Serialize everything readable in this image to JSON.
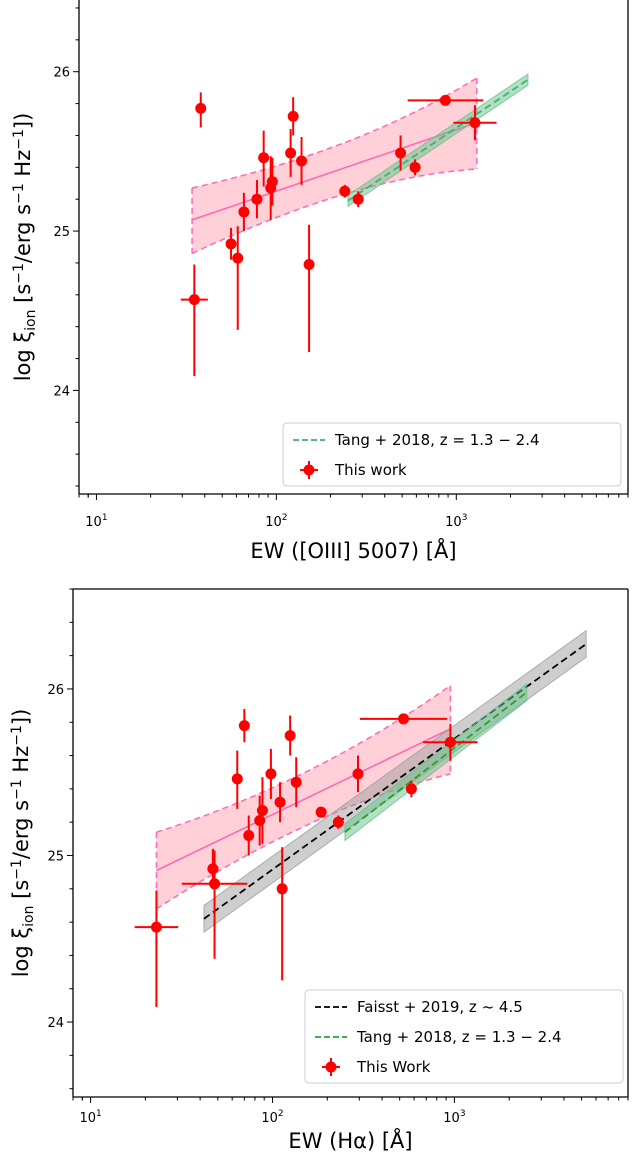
{
  "chart_data": [
    {
      "type": "scatter",
      "xlabel": "EW ([OIII] 5007) [Å]",
      "ylabel": "log ξ_ion [s^-1/erg s^-1 Hz^-1])",
      "xscale": "log",
      "xlim": [
        8,
        9000
      ],
      "ylim": [
        23.35,
        26.45
      ],
      "xticks": [
        10,
        100,
        1000
      ],
      "xtick_labels": [
        {
          "base": "10",
          "exp": "1"
        },
        {
          "base": "10",
          "exp": "2"
        },
        {
          "base": "10",
          "exp": "3"
        }
      ],
      "yticks": [
        24,
        25,
        26
      ],
      "ytick_labels": [
        "24",
        "25",
        "26"
      ],
      "grid": false,
      "legend_position": "lower-right",
      "colors": {
        "data": "#ff0000",
        "fit": "#ff69b4",
        "band": "#ffc0cb",
        "tang": "#3cb371",
        "tang_band": "#8fd19e"
      },
      "fit_band": {
        "x": [
          34,
          1300
        ],
        "center": [
          25.07,
          25.68
        ],
        "upper": [
          25.27,
          25.96
        ],
        "lower": [
          24.86,
          25.39
        ]
      },
      "reference_lines": [
        {
          "name": "Tang + 2018,  z = 1.3 − 2.4",
          "color": "#3cb371",
          "x": [
            250,
            2500
          ],
          "y": [
            25.19,
            25.95
          ],
          "band": 0.035
        }
      ],
      "series": [
        {
          "name": "This work",
          "color": "#ff0000",
          "points": [
            {
              "x": 35,
              "y": 24.57,
              "ylo": 0.48,
              "yhi": 0.22,
              "xerr": 0.025
            },
            {
              "x": 38,
              "y": 25.77,
              "ylo": 0.12,
              "yhi": 0.1
            },
            {
              "x": 56,
              "y": 24.92,
              "ylo": 0.1,
              "yhi": 0.1
            },
            {
              "x": 61,
              "y": 24.83,
              "ylo": 0.45,
              "yhi": 0.2
            },
            {
              "x": 66,
              "y": 25.12,
              "ylo": 0.12,
              "yhi": 0.12
            },
            {
              "x": 78,
              "y": 25.2,
              "ylo": 0.12,
              "yhi": 0.12
            },
            {
              "x": 85,
              "y": 25.46,
              "ylo": 0.18,
              "yhi": 0.17
            },
            {
              "x": 93,
              "y": 25.27,
              "ylo": 0.2,
              "yhi": 0.2
            },
            {
              "x": 95,
              "y": 25.31,
              "ylo": 0.15,
              "yhi": 0.15
            },
            {
              "x": 120,
              "y": 25.49,
              "ylo": 0.15,
              "yhi": 0.15
            },
            {
              "x": 124,
              "y": 25.72,
              "ylo": 0.12,
              "yhi": 0.12
            },
            {
              "x": 138,
              "y": 25.44,
              "ylo": 0.15,
              "yhi": 0.15
            },
            {
              "x": 152,
              "y": 24.79,
              "ylo": 0.55,
              "yhi": 0.25
            },
            {
              "x": 240,
              "y": 25.25,
              "ylo": 0.04,
              "yhi": 0.04
            },
            {
              "x": 285,
              "y": 25.2,
              "ylo": 0.05,
              "yhi": 0.05
            },
            {
              "x": 490,
              "y": 25.49,
              "ylo": 0.11,
              "yhi": 0.11
            },
            {
              "x": 590,
              "y": 25.4,
              "ylo": 0.05,
              "yhi": 0.05
            },
            {
              "x": 870,
              "y": 25.82,
              "ylo": 0.03,
              "yhi": 0.03,
              "xerr": 0.07
            },
            {
              "x": 1270,
              "y": 25.68,
              "ylo": 0.11,
              "yhi": 0.11,
              "xerr": 0.04
            }
          ]
        }
      ],
      "legend": [
        {
          "label": "Tang + 2018,  z = 1.3 − 2.4",
          "kind": "dashed",
          "color": "#3cb371"
        },
        {
          "label": "This work",
          "kind": "point",
          "color": "#ff0000"
        }
      ]
    },
    {
      "type": "scatter",
      "xlabel": "EW (Hα) [Å]",
      "ylabel": "log ξ_ion [s^-1/erg s^-1 Hz^-1])",
      "xscale": "log",
      "xlim": [
        8,
        9000
      ],
      "ylim": [
        23.55,
        26.6
      ],
      "xticks": [
        10,
        100,
        1000
      ],
      "xtick_labels": [
        {
          "base": "10",
          "exp": "1"
        },
        {
          "base": "10",
          "exp": "2"
        },
        {
          "base": "10",
          "exp": "3"
        }
      ],
      "yticks": [
        24,
        25,
        26
      ],
      "ytick_labels": [
        "24",
        "25",
        "26"
      ],
      "grid": false,
      "legend_position": "lower-right",
      "colors": {
        "data": "#ff0000",
        "fit": "#ff69b4",
        "band": "#ffc0cb",
        "faisst": "#000000",
        "faisst_band": "#bdbdbd",
        "tang": "#2ca02c",
        "tang_band": "#8fd19e"
      },
      "fit_band": {
        "x": [
          23,
          950
        ],
        "center": [
          24.91,
          25.76
        ],
        "upper": [
          25.14,
          26.02
        ],
        "lower": [
          24.68,
          25.49
        ]
      },
      "reference_lines": [
        {
          "name": "Faisst + 2019,  z ~ 4.5",
          "color": "#000000",
          "x": [
            42,
            5300
          ],
          "y": [
            24.62,
            26.27
          ],
          "band": 0.08
        },
        {
          "name": "Tang + 2018,  z = 1.3 − 2.4",
          "color": "#2ca02c",
          "x": [
            250,
            2500
          ],
          "y": [
            25.14,
            25.98
          ],
          "band": 0.05
        }
      ],
      "series": [
        {
          "name": "This Work",
          "color": "#ff0000",
          "points": [
            {
              "x": 23,
              "y": 24.57,
              "ylo": 0.48,
              "yhi": 0.22,
              "xerr": 0.04
            },
            {
              "x": 47,
              "y": 24.92,
              "ylo": 0.12,
              "yhi": 0.12
            },
            {
              "x": 48,
              "y": 24.83,
              "ylo": 0.45,
              "yhi": 0.2,
              "xerr": 0.06
            },
            {
              "x": 64,
              "y": 25.46,
              "ylo": 0.18,
              "yhi": 0.17
            },
            {
              "x": 70,
              "y": 25.78,
              "ylo": 0.1,
              "yhi": 0.1
            },
            {
              "x": 74,
              "y": 25.12,
              "ylo": 0.12,
              "yhi": 0.12
            },
            {
              "x": 85,
              "y": 25.21,
              "ylo": 0.15,
              "yhi": 0.15
            },
            {
              "x": 88,
              "y": 25.27,
              "ylo": 0.2,
              "yhi": 0.2
            },
            {
              "x": 98,
              "y": 25.49,
              "ylo": 0.15,
              "yhi": 0.15
            },
            {
              "x": 110,
              "y": 25.32,
              "ylo": 0.12,
              "yhi": 0.12
            },
            {
              "x": 113,
              "y": 24.8,
              "ylo": 0.55,
              "yhi": 0.25
            },
            {
              "x": 125,
              "y": 25.72,
              "ylo": 0.12,
              "yhi": 0.12
            },
            {
              "x": 135,
              "y": 25.44,
              "ylo": 0.15,
              "yhi": 0.15
            },
            {
              "x": 185,
              "y": 25.26,
              "ylo": 0.03,
              "yhi": 0.03
            },
            {
              "x": 230,
              "y": 25.2,
              "ylo": 0.04,
              "yhi": 0.04
            },
            {
              "x": 295,
              "y": 25.49,
              "ylo": 0.11,
              "yhi": 0.11
            },
            {
              "x": 525,
              "y": 25.82,
              "ylo": 0.03,
              "yhi": 0.03,
              "xerr": 0.08
            },
            {
              "x": 580,
              "y": 25.4,
              "ylo": 0.05,
              "yhi": 0.05
            },
            {
              "x": 950,
              "y": 25.68,
              "ylo": 0.11,
              "yhi": 0.11,
              "xerr": 0.05
            }
          ]
        }
      ],
      "legend": [
        {
          "label": "Faisst + 2019,  z ~ 4.5",
          "kind": "dashed",
          "color": "#000000"
        },
        {
          "label": "Tang + 2018,  z = 1.3 − 2.4",
          "kind": "dashed",
          "color": "#2ca02c"
        },
        {
          "label": "This Work",
          "kind": "point",
          "color": "#ff0000"
        }
      ]
    }
  ]
}
